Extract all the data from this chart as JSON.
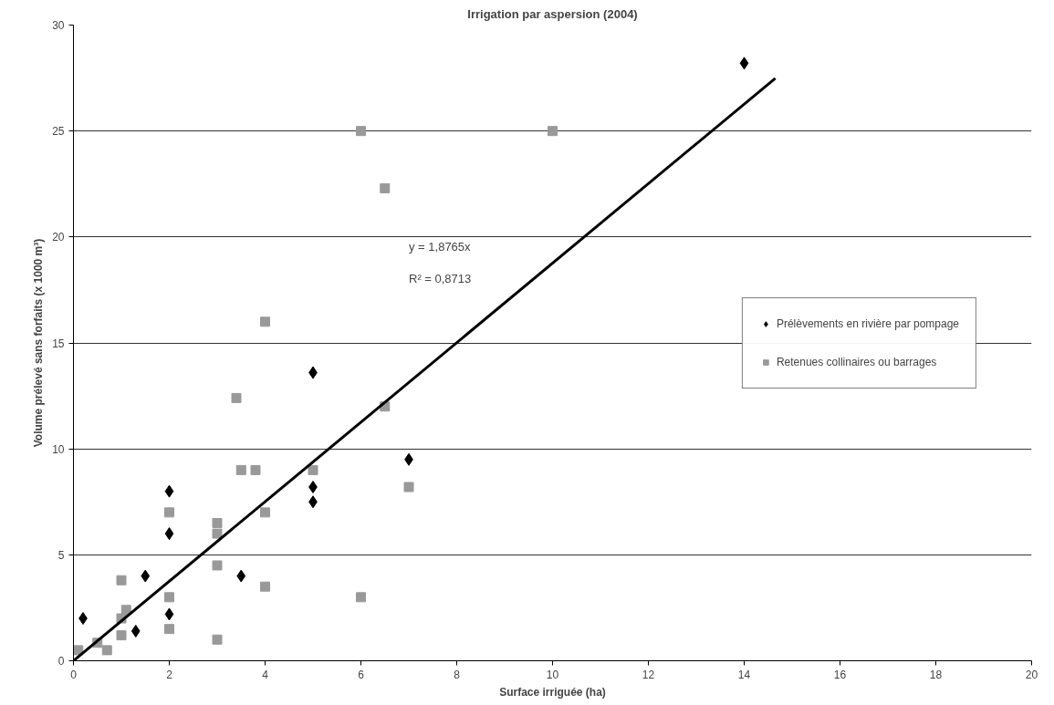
{
  "chart_data": {
    "type": "scatter",
    "title": "Irrigation par aspersion (2004)",
    "xlabel": "Surface irriguée (ha)",
    "ylabel": "Volume prélevé sans forfaits (x 1000 m³)",
    "xlim": [
      0,
      20
    ],
    "ylim": [
      0,
      30
    ],
    "xticks": [
      0,
      2,
      4,
      6,
      8,
      10,
      12,
      14,
      16,
      18,
      20
    ],
    "yticks": [
      0,
      5,
      10,
      15,
      20,
      25,
      30
    ],
    "grid": "y",
    "legend": "right",
    "annotations": [
      "y = 1,8765x",
      "R² = 0,8713"
    ],
    "series": [
      {
        "name": "Prélèvements en rivière par pompage",
        "color": "#000000",
        "marker": "diamond",
        "x": [
          0.2,
          1.3,
          1.5,
          2,
          2,
          2,
          3.5,
          5,
          5,
          5,
          7,
          14
        ],
        "values": [
          2,
          1.4,
          4,
          2.2,
          6,
          8,
          4,
          7.5,
          8.2,
          13.6,
          9.5,
          28.2
        ]
      },
      {
        "name": "Retenues collinaires ou barrages",
        "color": "#999999",
        "marker": "square",
        "x": [
          0.1,
          0.5,
          0.7,
          1,
          1,
          1,
          1.1,
          2,
          2,
          2,
          3,
          3,
          3,
          3,
          3.4,
          3.5,
          3.8,
          4,
          4,
          4,
          5,
          6,
          6,
          6.5,
          6.5,
          7,
          10
        ],
        "values": [
          0.5,
          0.85,
          0.5,
          1.2,
          2,
          3.8,
          2.4,
          1.5,
          3,
          7,
          1,
          4.5,
          6,
          6.5,
          12.4,
          9,
          9,
          3.5,
          7,
          16,
          9,
          3,
          25,
          22.3,
          12,
          8.2,
          25
        ]
      },
      {
        "type": "line",
        "color": "#000000",
        "x": [
          0,
          14.65
        ],
        "values": [
          0,
          27.49
        ]
      }
    ]
  }
}
